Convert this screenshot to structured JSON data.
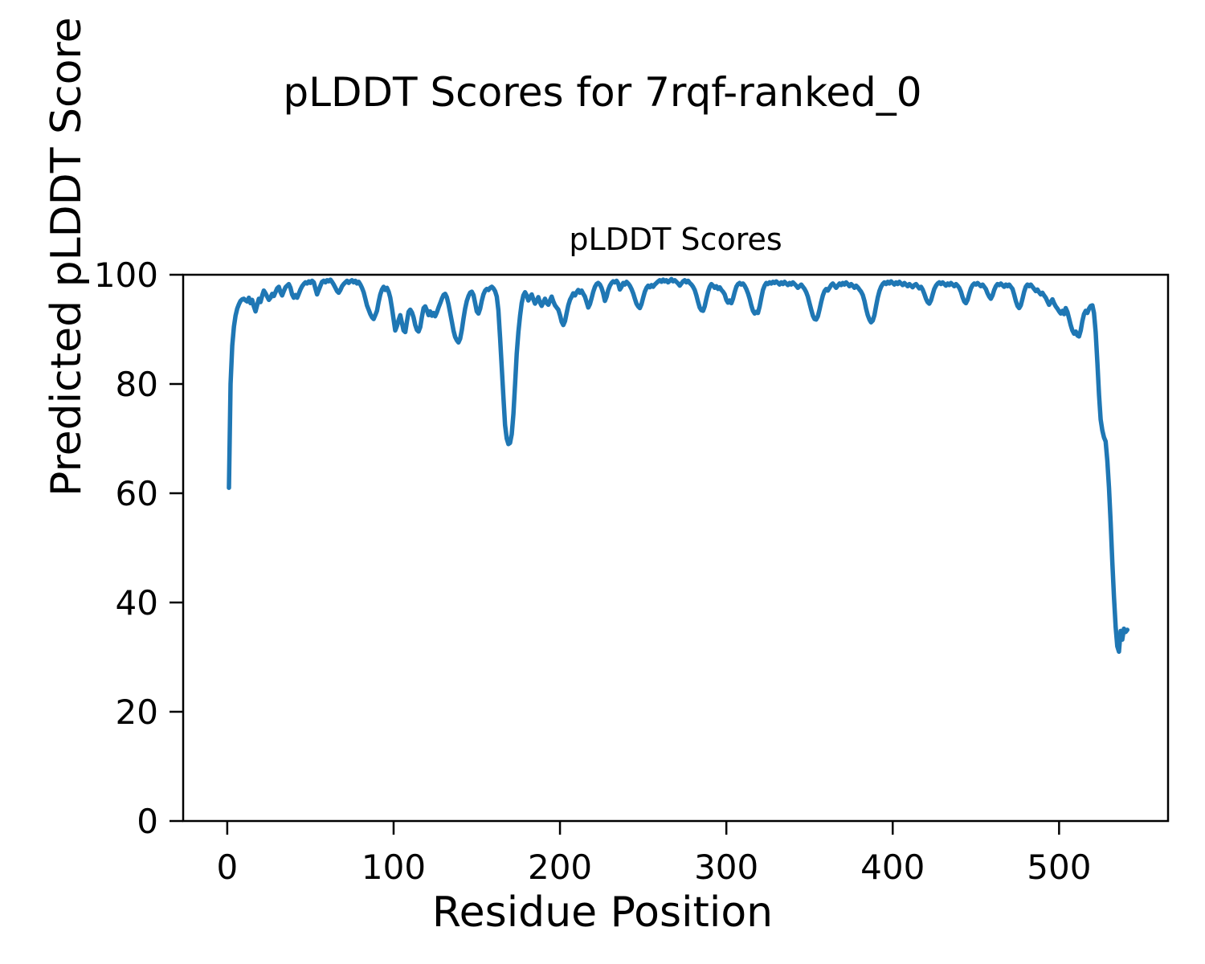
{
  "figure": {
    "background": "#ffffff",
    "text_color": "#000000"
  },
  "chart_data": {
    "type": "line",
    "title": "pLDDT Scores for 7rqf-ranked_0",
    "axes_title": "pLDDT Scores",
    "xlabel": "Residue Position",
    "ylabel": "Predicted pLDDT Score",
    "x_ticks": [
      0,
      100,
      200,
      300,
      400,
      500
    ],
    "y_ticks": [
      0,
      20,
      40,
      60,
      80,
      100
    ],
    "xlim": [
      -26.5,
      565.5
    ],
    "ylim": [
      0,
      100
    ],
    "grid": false,
    "legend": "none",
    "line_color": "#1f77b4",
    "line_width": 5.5,
    "series": [
      {
        "name": "pLDDT",
        "x_start": 1,
        "values": [
          61,
          80,
          87,
          90.5,
          92.5,
          93.8,
          94.6,
          95.2,
          95.5,
          95.6,
          95.3,
          95.1,
          95.8,
          94.8,
          95.4,
          94.2,
          93.3,
          94.5,
          95.6,
          95.0,
          96.2,
          97.1,
          96.6,
          96.0,
          95.4,
          95.8,
          96.5,
          96.1,
          96.8,
          97.5,
          97.8,
          96.8,
          96.2,
          97.0,
          97.7,
          98.0,
          98.3,
          97.6,
          96.4,
          95.8,
          96.3,
          95.8,
          96.5,
          97.3,
          97.9,
          98.3,
          98.6,
          98.4,
          98.8,
          98.5,
          98.9,
          98.6,
          97.5,
          96.4,
          97.2,
          98.0,
          98.7,
          98.9,
          98.6,
          99.0,
          98.8,
          99.1,
          98.7,
          98.2,
          97.6,
          97.0,
          96.7,
          97.2,
          97.9,
          98.3,
          98.6,
          98.9,
          98.5,
          98.8,
          99.0,
          98.6,
          98.9,
          98.4,
          98.7,
          98.2,
          97.6,
          96.8,
          95.6,
          94.4,
          93.6,
          92.8,
          92.2,
          91.9,
          92.6,
          93.4,
          95.0,
          96.4,
          97.3,
          97.8,
          97.2,
          97.6,
          96.9,
          95.8,
          93.9,
          91.8,
          89.8,
          90.6,
          91.7,
          92.6,
          91.2,
          89.8,
          89.5,
          91.4,
          93.2,
          93.6,
          93.1,
          92.2,
          90.8,
          89.9,
          89.6,
          90.4,
          92.3,
          93.9,
          94.2,
          93.5,
          92.6,
          93.3,
          92.5,
          93.0,
          92.4,
          93.1,
          94.0,
          94.8,
          95.6,
          96.3,
          96.5,
          95.9,
          94.6,
          93.0,
          91.4,
          89.8,
          88.6,
          88.0,
          87.6,
          88.3,
          89.9,
          92.0,
          93.8,
          95.2,
          96.1,
          96.7,
          96.9,
          96.3,
          94.8,
          93.3,
          92.9,
          93.8,
          95.2,
          96.4,
          97.1,
          97.4,
          97.2,
          97.6,
          97.8,
          97.5,
          97.0,
          96.0,
          93.5,
          88.5,
          83.0,
          77.5,
          72.5,
          70.0,
          69.0,
          69.2,
          70.8,
          74.5,
          80.0,
          85.5,
          89.5,
          92.5,
          94.8,
          96.2,
          96.8,
          96.2,
          95.3,
          95.9,
          96.4,
          95.5,
          94.7,
          95.3,
          95.9,
          94.9,
          94.3,
          95.0,
          95.6,
          94.8,
          94.5,
          95.3,
          96.0,
          95.1,
          94.4,
          94.0,
          93.6,
          92.6,
          91.4,
          90.8,
          91.5,
          93.0,
          94.4,
          95.4,
          96.0,
          96.6,
          96.2,
          96.8,
          97.2,
          96.7,
          97.1,
          96.5,
          96.0,
          95.0,
          94.0,
          94.6,
          95.7,
          96.9,
          97.8,
          98.3,
          98.5,
          98.2,
          97.6,
          96.6,
          95.2,
          96.0,
          97.2,
          98.0,
          98.5,
          98.8,
          98.6,
          98.9,
          98.4,
          97.3,
          97.8,
          98.5,
          98.2,
          98.7,
          98.4,
          98.0,
          97.4,
          96.6,
          95.6,
          94.7,
          94.2,
          93.9,
          94.6,
          95.8,
          96.9,
          97.6,
          98.0,
          97.7,
          98.1,
          97.8,
          98.2,
          98.5,
          98.8,
          99.0,
          98.7,
          99.1,
          98.8,
          99.0,
          98.6,
          98.9,
          99.2,
          98.8,
          99.0,
          98.7,
          98.4,
          98.0,
          98.4,
          98.8,
          99.0,
          98.6,
          98.9,
          98.5,
          98.2,
          97.8,
          97.2,
          96.2,
          95.0,
          94.0,
          93.5,
          93.4,
          94.2,
          95.6,
          96.9,
          97.8,
          98.3,
          98.0,
          97.6,
          97.9,
          97.4,
          97.7,
          97.2,
          96.9,
          96.4,
          95.4,
          94.9,
          95.3,
          94.8,
          95.6,
          96.8,
          97.8,
          98.3,
          98.5,
          98.2,
          98.4,
          98.0,
          97.4,
          96.6,
          95.6,
          94.4,
          93.4,
          92.9,
          93.2,
          93.0,
          94.2,
          95.8,
          97.2,
          98.0,
          98.5,
          98.3,
          98.6,
          98.4,
          98.7,
          98.5,
          98.8,
          98.5,
          98.2,
          98.6,
          98.3,
          98.7,
          98.4,
          98.1,
          98.5,
          98.2,
          98.6,
          98.3,
          98.0,
          97.6,
          97.9,
          98.2,
          97.8,
          97.4,
          96.8,
          96.0,
          94.8,
          93.6,
          92.5,
          91.9,
          91.8,
          92.4,
          93.6,
          95.0,
          96.2,
          97.0,
          97.4,
          97.1,
          97.6,
          98.1,
          98.4,
          98.0,
          97.6,
          98.0,
          98.4,
          98.1,
          98.5,
          98.2,
          98.6,
          98.3,
          97.9,
          98.3,
          98.0,
          97.6,
          98.0,
          97.7,
          97.3,
          96.9,
          96.3,
          95.2,
          93.8,
          92.6,
          91.8,
          91.3,
          91.6,
          92.6,
          94.2,
          95.8,
          97.0,
          97.8,
          98.3,
          98.6,
          98.3,
          98.7,
          98.4,
          98.8,
          98.5,
          98.2,
          98.6,
          98.3,
          98.7,
          98.4,
          98.1,
          98.5,
          98.2,
          97.9,
          98.3,
          98.0,
          97.7,
          98.1,
          98.3,
          97.9,
          97.5,
          97.8,
          97.3,
          96.5,
          95.6,
          95.0,
          94.7,
          95.3,
          96.4,
          97.4,
          98.0,
          98.4,
          98.6,
          98.3,
          98.6,
          98.3,
          98.0,
          98.4,
          98.1,
          98.5,
          98.2,
          97.9,
          98.3,
          98.0,
          97.6,
          96.9,
          95.9,
          95.1,
          94.8,
          95.4,
          96.5,
          97.5,
          98.1,
          98.4,
          98.2,
          98.5,
          98.2,
          97.9,
          98.2,
          97.8,
          97.4,
          96.6,
          96.0,
          95.6,
          96.2,
          97.2,
          97.9,
          98.3,
          98.1,
          98.4,
          98.1,
          97.8,
          98.2,
          97.9,
          98.2,
          97.8,
          97.4,
          96.4,
          95.2,
          94.3,
          93.9,
          94.4,
          95.6,
          96.9,
          97.8,
          98.2,
          97.9,
          98.2,
          97.8,
          97.4,
          97.0,
          97.3,
          96.8,
          96.4,
          96.7,
          96.2,
          95.8,
          95.1,
          94.5,
          95.0,
          95.5,
          94.8,
          94.2,
          93.8,
          93.3,
          92.9,
          93.4,
          92.8,
          93.9,
          93.2,
          92.0,
          90.8,
          89.8,
          89.2,
          89.6,
          88.9,
          88.7,
          89.8,
          91.5,
          92.8,
          93.4,
          93.0,
          93.8,
          94.3,
          94.4,
          93.0,
          89.5,
          84.0,
          78.0,
          73.5,
          71.5,
          70.2,
          69.5,
          66.0,
          61.0,
          54.5,
          47.5,
          41.0,
          35.5,
          32.0,
          31.0,
          34.8,
          33.2,
          35.2,
          34.6,
          35.0
        ]
      }
    ]
  }
}
